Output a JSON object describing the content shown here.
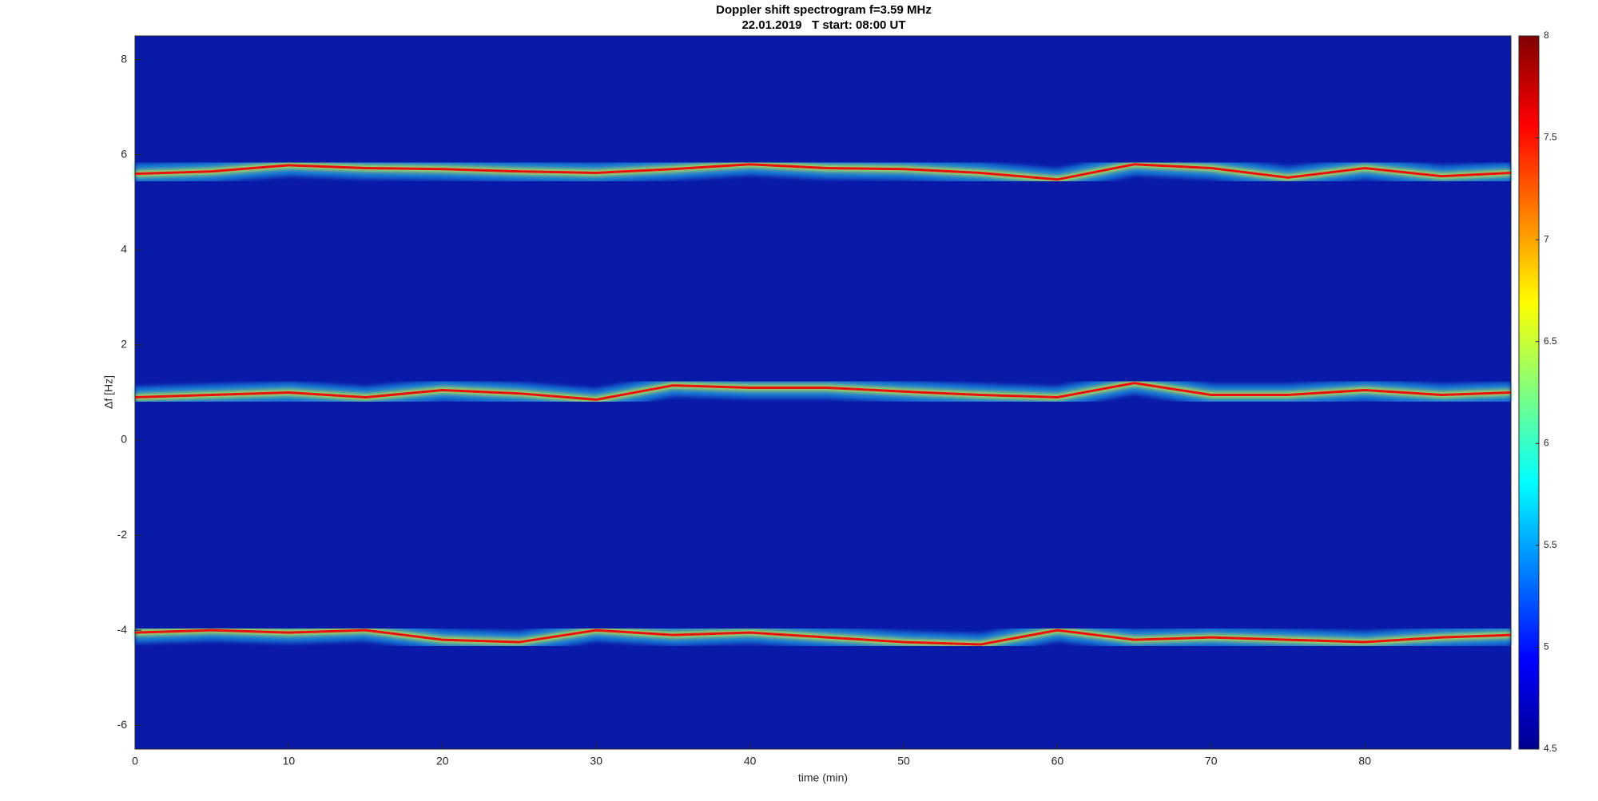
{
  "chart_data": {
    "type": "spectrogram",
    "title": "Doppler shift spectrogram f=3.59 MHz",
    "subtitle": "22.01.2019   T start: 08:00 UT",
    "x_label": "time (min)",
    "y_label": "Δf [Hz]",
    "x": [
      0,
      5,
      10,
      15,
      20,
      25,
      30,
      35,
      40,
      45,
      50,
      55,
      60,
      65,
      70,
      75,
      80,
      85,
      89.5
    ],
    "series": [
      {
        "color": "#e81010",
        "values": [
          5.6,
          5.65,
          5.78,
          5.72,
          5.7,
          5.65,
          5.62,
          5.7,
          5.8,
          5.72,
          5.7,
          5.62,
          5.48,
          5.8,
          5.72,
          5.52,
          5.72,
          5.55,
          5.62
        ]
      },
      {
        "color": "#e81010",
        "values": [
          0.9,
          0.95,
          1.0,
          0.9,
          1.05,
          0.98,
          0.85,
          1.15,
          1.1,
          1.1,
          1.02,
          0.95,
          0.9,
          1.2,
          0.95,
          0.95,
          1.05,
          0.95,
          1.0
        ]
      },
      {
        "color": "#e81010",
        "values": [
          -4.05,
          -4.0,
          -4.05,
          -4.0,
          -4.2,
          -4.25,
          -4.0,
          -4.1,
          -4.05,
          -4.15,
          -4.25,
          -4.3,
          -4.0,
          -4.2,
          -4.15,
          -4.2,
          -4.25,
          -4.15,
          -4.1
        ]
      }
    ],
    "background_color": "#0a1aa8",
    "xlim": [
      0,
      89.5
    ],
    "xticks": [
      0,
      10,
      20,
      30,
      40,
      50,
      60,
      70,
      80
    ],
    "ylim": [
      -6.5,
      8.5
    ],
    "yticks": [
      -6,
      -4,
      -2,
      0,
      2,
      4,
      6,
      8
    ],
    "colorbar": {
      "colormap": "jet",
      "clim": [
        4.5,
        8
      ],
      "ticks": [
        4.5,
        5,
        5.5,
        6,
        6.5,
        7,
        7.5,
        8
      ]
    }
  }
}
